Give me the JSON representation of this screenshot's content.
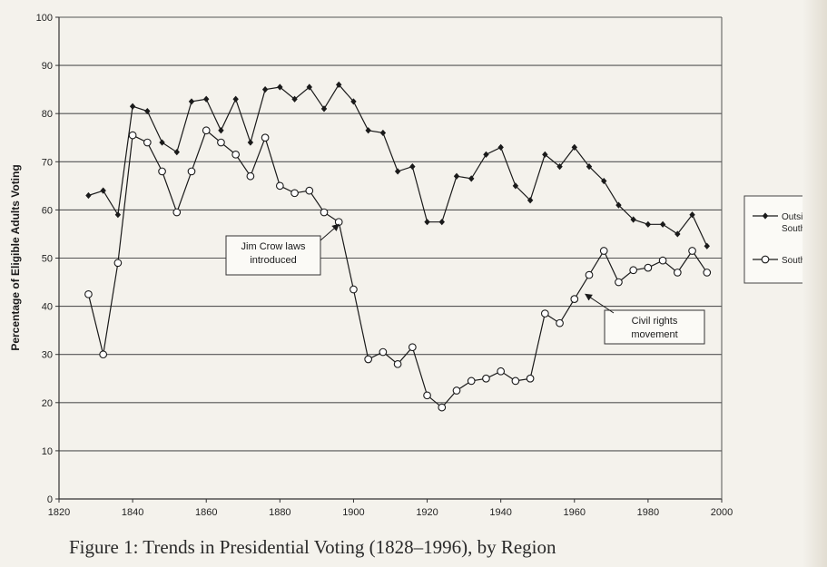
{
  "chart_data": {
    "type": "line",
    "xlabel": "",
    "ylabel": "Percentage of Eligible Adults Voting",
    "xlim": [
      1820,
      2000
    ],
    "ylim": [
      0,
      100
    ],
    "xticks": [
      "1820",
      "1840",
      "1860",
      "1880",
      "1900",
      "1920",
      "1940",
      "1960",
      "1980",
      "2000"
    ],
    "yticks": [
      "0",
      "10",
      "20",
      "30",
      "40",
      "50",
      "60",
      "70",
      "80",
      "90",
      "100"
    ],
    "grid": "horizontal",
    "legend_position": "right",
    "series": [
      {
        "name": "Outside South",
        "marker": "filled-diamond",
        "color": "#1a1a1a",
        "x": [
          1828,
          1832,
          1836,
          1840,
          1844,
          1848,
          1852,
          1856,
          1860,
          1864,
          1868,
          1872,
          1876,
          1880,
          1884,
          1888,
          1892,
          1896,
          1900,
          1904,
          1908,
          1912,
          1916,
          1920,
          1924,
          1928,
          1932,
          1936,
          1940,
          1944,
          1948,
          1952,
          1956,
          1960,
          1964,
          1968,
          1972,
          1976,
          1980,
          1984,
          1988,
          1992,
          1996
        ],
        "y": [
          63,
          64,
          59,
          81.5,
          80.5,
          74,
          72,
          82.5,
          83,
          76.5,
          83,
          74,
          85,
          85.5,
          83,
          85.5,
          81,
          86,
          82.5,
          76.5,
          76,
          68,
          69,
          57.5,
          57.5,
          67,
          66.5,
          71.5,
          73,
          65,
          62,
          71.5,
          69,
          73,
          69,
          66,
          61,
          58,
          57,
          57,
          55,
          59,
          52.5
        ]
      },
      {
        "name": "South",
        "marker": "open-circle",
        "color": "#1a1a1a",
        "x": [
          1828,
          1832,
          1836,
          1840,
          1844,
          1848,
          1852,
          1856,
          1860,
          1864,
          1868,
          1872,
          1876,
          1880,
          1884,
          1888,
          1892,
          1896,
          1900,
          1904,
          1908,
          1912,
          1916,
          1920,
          1924,
          1928,
          1932,
          1936,
          1940,
          1944,
          1948,
          1952,
          1956,
          1960,
          1964,
          1968,
          1972,
          1976,
          1980,
          1984,
          1988,
          1992,
          1996
        ],
        "y": [
          42.5,
          30,
          49,
          75.5,
          74,
          68,
          59.5,
          68,
          76.5,
          74,
          71.5,
          67,
          75,
          65,
          63.5,
          64,
          59.5,
          57.5,
          43.5,
          29,
          30.5,
          28,
          31.5,
          21.5,
          19,
          22.5,
          24.5,
          25,
          26.5,
          24.5,
          25,
          38.5,
          36.5,
          41.5,
          46.5,
          51.5,
          45,
          47.5,
          48,
          49.5,
          47,
          51.5,
          47
        ]
      }
    ],
    "annotations": [
      {
        "lines": [
          "Jim Crow laws",
          "introduced"
        ],
        "arrow_to": {
          "x": 1896,
          "y": 57
        }
      },
      {
        "lines": [
          "Civil rights",
          "movement"
        ],
        "arrow_to": {
          "x": 1963,
          "y": 42.5
        }
      }
    ],
    "legend_entries": [
      {
        "lines": [
          "Outside",
          "South"
        ],
        "marker": "filled-diamond"
      },
      {
        "lines": [
          "South"
        ],
        "marker": "open-circle"
      }
    ]
  },
  "caption": "Figure 1: Trends in Presidential Voting (1828–1996), by Region"
}
